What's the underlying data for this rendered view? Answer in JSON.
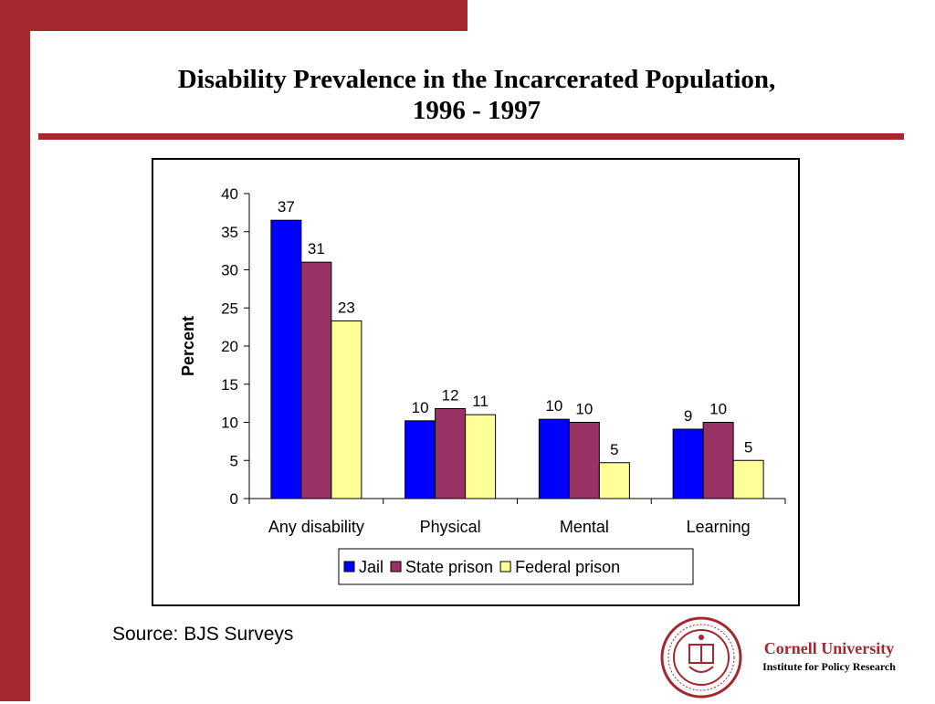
{
  "slide": {
    "title_line1": "Disability Prevalence in the Incarcerated Population,",
    "title_line2": "1996 - 1997",
    "source": "Source: BJS Surveys",
    "institution": "Cornell University",
    "institution_sub": "Institute for Policy Research",
    "seal_icon": "cornell-university-seal",
    "accent_color": "#a4282e"
  },
  "chart_data": {
    "type": "bar",
    "title": "",
    "xlabel": "",
    "ylabel": "Percent",
    "ylim": [
      0,
      40
    ],
    "yticks": [
      0,
      5,
      10,
      15,
      20,
      25,
      30,
      35,
      40
    ],
    "categories": [
      "Any disability",
      "Physical",
      "Mental",
      "Learning"
    ],
    "series": [
      {
        "name": "Jail",
        "color": "#0000ff",
        "values": [
          36.5,
          10.2,
          10.4,
          9.1
        ],
        "labels": [
          "37",
          "10",
          "10",
          "9"
        ]
      },
      {
        "name": "State prison",
        "color": "#993366",
        "values": [
          31.0,
          11.8,
          10.0,
          10.0
        ],
        "labels": [
          "31",
          "12",
          "10",
          "10"
        ]
      },
      {
        "name": "Federal prison",
        "color": "#ffff99",
        "values": [
          23.3,
          11.0,
          4.7,
          5.0
        ],
        "labels": [
          "23",
          "11",
          "5",
          "5"
        ]
      }
    ],
    "grid": false,
    "legend": "bottom"
  }
}
